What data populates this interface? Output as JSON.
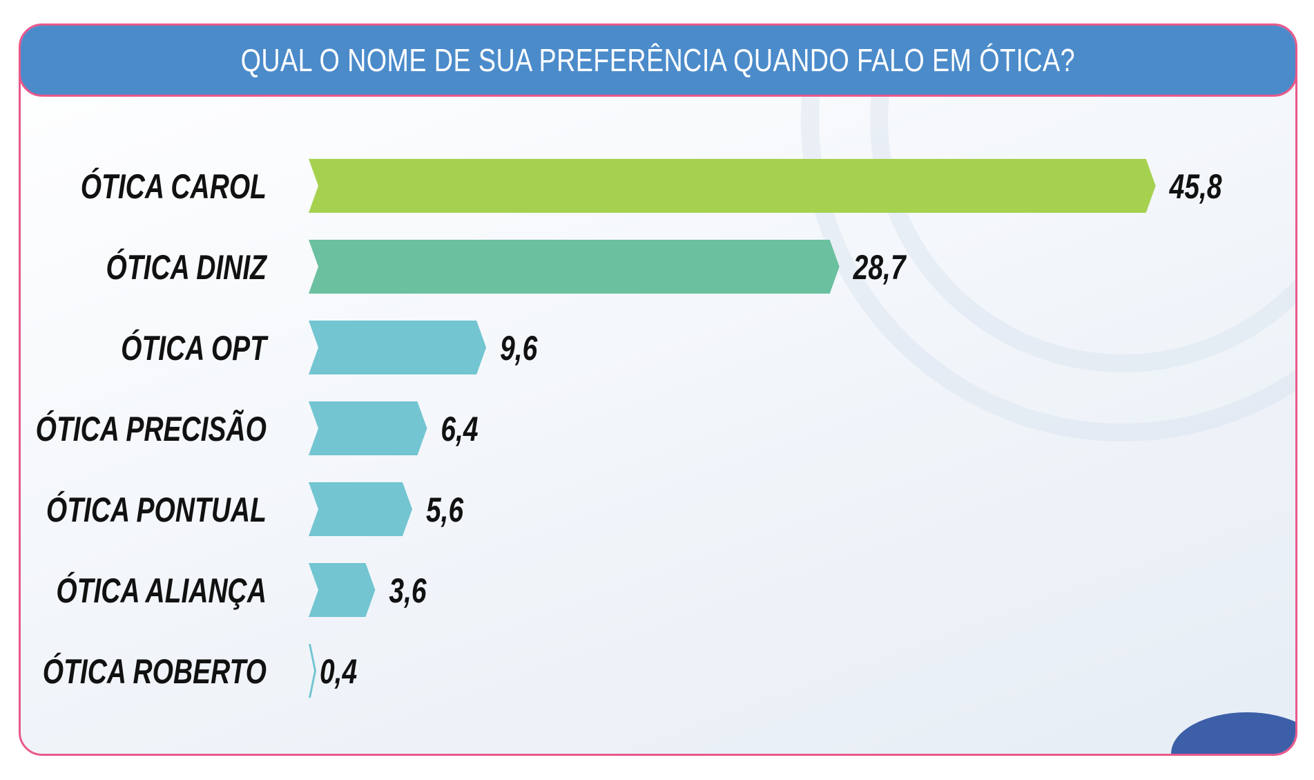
{
  "title": "QUAL O NOME DE SUA PREFERÊNCIA QUANDO FALO EM ÓTICA?",
  "colors": {
    "header": "#4b8bca",
    "border": "#e9588a",
    "first": "#a5d14f",
    "second": "#6bc09f",
    "others": "#72c5d1"
  },
  "chart_data": {
    "type": "bar",
    "orientation": "horizontal",
    "title": "QUAL O NOME DE SUA PREFERÊNCIA QUANDO FALO EM ÓTICA?",
    "categories": [
      "ÓTICA CAROL",
      "ÓTICA DINIZ",
      "ÓTICA OPT",
      "ÓTICA PRECISÃO",
      "ÓTICA PONTUAL",
      "ÓTICA ALIANÇA",
      "ÓTICA ROBERTO"
    ],
    "values": [
      45.8,
      28.7,
      9.6,
      6.4,
      5.6,
      3.6,
      0.4
    ],
    "value_labels": [
      "45,8",
      "28,7",
      "9,6",
      "6,4",
      "5,6",
      "3,6",
      "0,4"
    ],
    "bar_colors": [
      "#a5d14f",
      "#6bc09f",
      "#72c5d1",
      "#72c5d1",
      "#72c5d1",
      "#72c5d1",
      "#72c5d1"
    ],
    "grid": false,
    "legend": "none"
  }
}
